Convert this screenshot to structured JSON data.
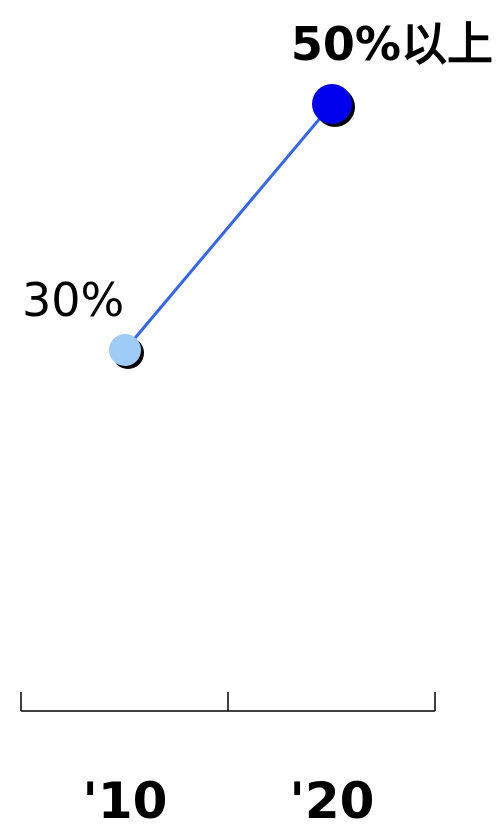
{
  "chart_data": {
    "type": "line",
    "categories": [
      "'10",
      "'20"
    ],
    "series": [
      {
        "values": [
          30,
          50
        ],
        "point_colors": [
          "#9fcbf7",
          "#0000ee"
        ]
      }
    ],
    "data_labels": [
      "30%",
      "50%以上"
    ],
    "title": "",
    "xlabel": "",
    "ylabel": "",
    "ylim": [
      0,
      55
    ],
    "grid": false,
    "line_color": "#3366ee"
  }
}
